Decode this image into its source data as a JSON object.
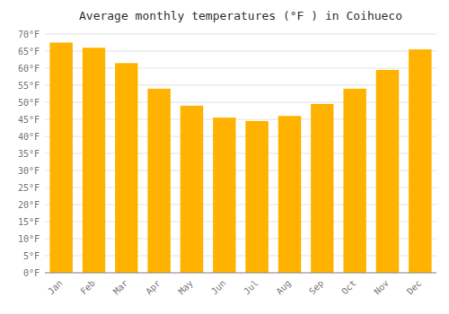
{
  "chart_data": {
    "type": "bar",
    "title": "Average monthly temperatures (°F ) in Coihueco",
    "categories": [
      "Jan",
      "Feb",
      "Mar",
      "Apr",
      "May",
      "Jun",
      "Jul",
      "Aug",
      "Sep",
      "Oct",
      "Nov",
      "Dec"
    ],
    "values": [
      67.5,
      66,
      61.5,
      54,
      49,
      45.5,
      44.5,
      46,
      49.5,
      54,
      59.5,
      65.5
    ],
    "color": "#FFB300",
    "ylim": [
      0,
      70
    ],
    "yticks": [
      {
        "value": 0,
        "label": "0°F"
      },
      {
        "value": 5,
        "label": "5°F"
      },
      {
        "value": 10,
        "label": "10°F"
      },
      {
        "value": 15,
        "label": "15°F"
      },
      {
        "value": 20,
        "label": "20°F"
      },
      {
        "value": 25,
        "label": "25°F"
      },
      {
        "value": 30,
        "label": "30°F"
      },
      {
        "value": 35,
        "label": "35°F"
      },
      {
        "value": 40,
        "label": "40°F"
      },
      {
        "value": 45,
        "label": "45°F"
      },
      {
        "value": 50,
        "label": "50°F"
      },
      {
        "value": 55,
        "label": "55°F"
      },
      {
        "value": 60,
        "label": "60°F"
      },
      {
        "value": 65,
        "label": "65°F"
      },
      {
        "value": 70,
        "label": "70°F"
      }
    ],
    "grid": true
  }
}
